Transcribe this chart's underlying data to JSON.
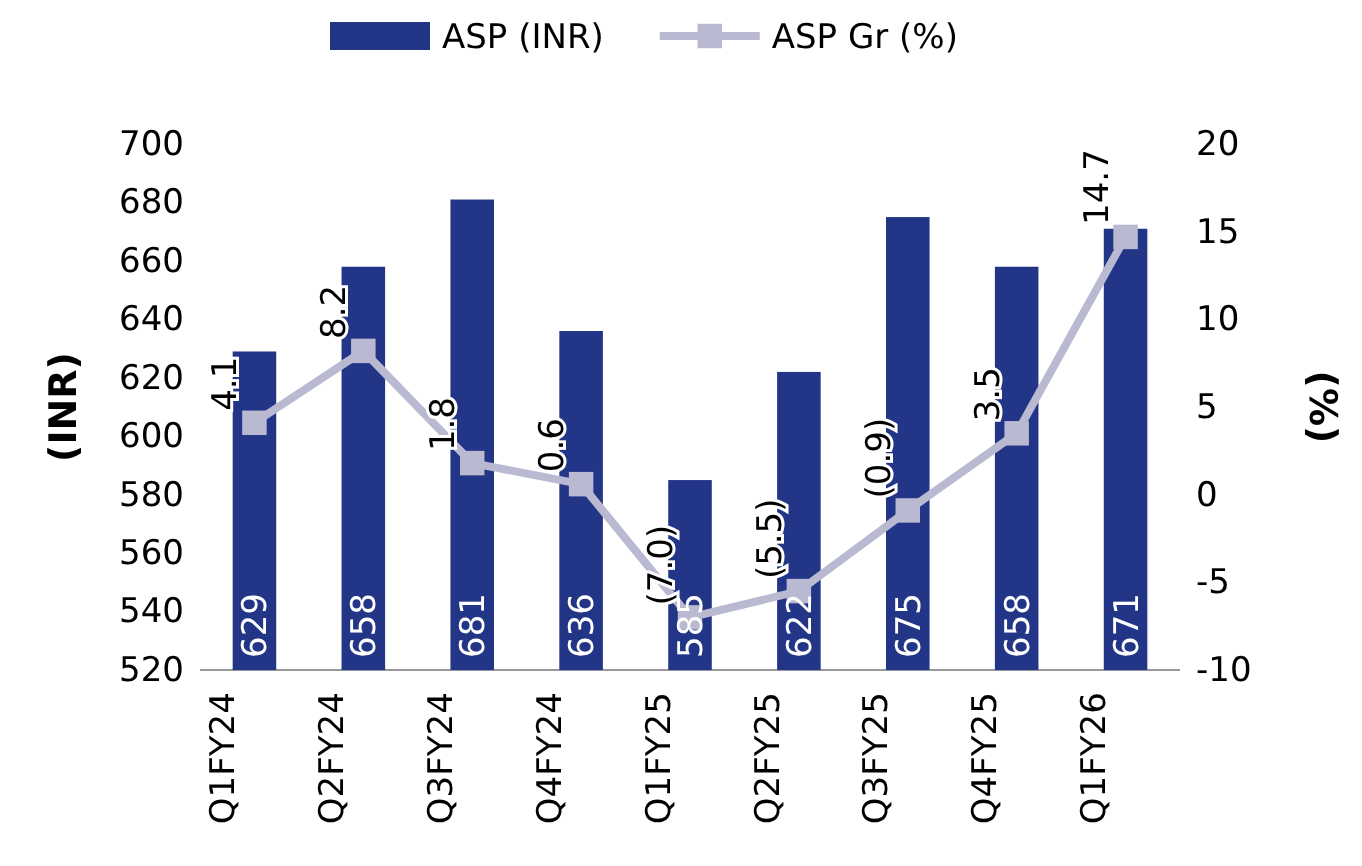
{
  "chart_data": {
    "type": "bar",
    "categories": [
      "Q1FY24",
      "Q2FY24",
      "Q3FY24",
      "Q4FY24",
      "Q1FY25",
      "Q2FY25",
      "Q3FY25",
      "Q4FY25",
      "Q1FY26"
    ],
    "ylabel": "(INR)",
    "y2label": "(%)",
    "ylim": [
      520,
      700
    ],
    "yticks": [
      520,
      540,
      560,
      580,
      600,
      620,
      640,
      660,
      680,
      700
    ],
    "y2lim": [
      -10,
      20
    ],
    "y2ticks": [
      -10,
      -5,
      0,
      5,
      10,
      15,
      20
    ],
    "legend": "top",
    "data_labels": true,
    "marker": "square",
    "line_style": "solid",
    "grid": false,
    "series": [
      {
        "name": "ASP (INR)",
        "color": "#233587",
        "values": [
          629,
          658,
          681,
          636,
          585,
          622,
          675,
          658,
          671
        ]
      },
      {
        "name": "ASP Gr (%)",
        "type": "line",
        "axis": "y2",
        "color": "#b9b9d2",
        "values": [
          4.1,
          8.2,
          1.8,
          0.6,
          -7.0,
          -5.5,
          -0.9,
          3.5,
          14.7
        ],
        "value_labels": [
          "4.1",
          "8.2",
          "1.8",
          "0.6",
          "(7.0)",
          "(5.5)",
          "(0.9)",
          "3.5",
          "14.7"
        ]
      }
    ]
  }
}
